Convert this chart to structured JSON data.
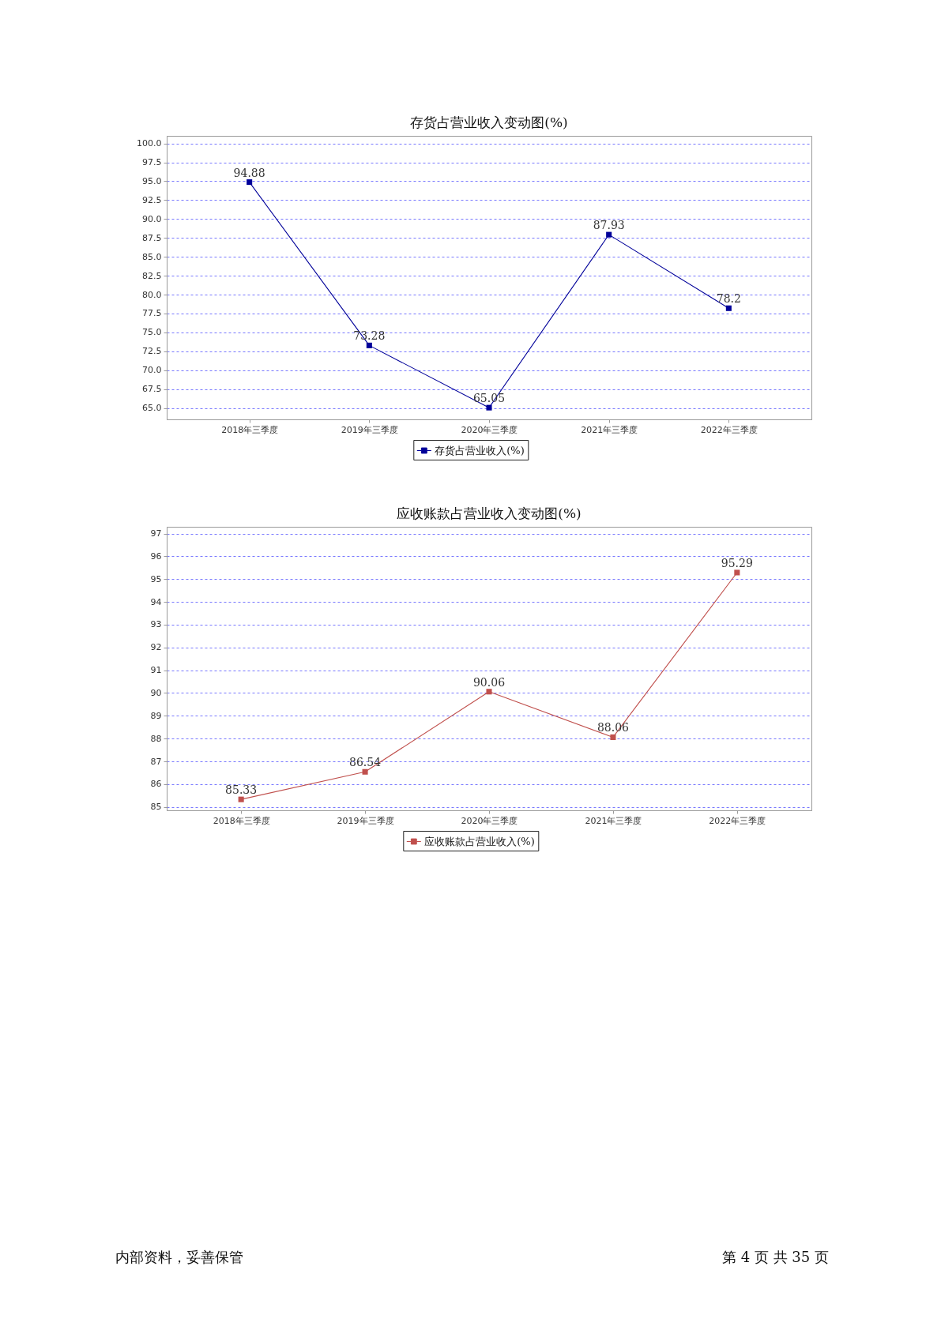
{
  "chart_data": [
    {
      "type": "line",
      "title": "存货占营业收入变动图(%)",
      "categories": [
        "2018年三季度",
        "2019年三季度",
        "2020年三季度",
        "2021年三季度",
        "2022年三季度"
      ],
      "series": [
        {
          "name": "存货占营业收入(%)",
          "color": "#000099",
          "values": [
            94.88,
            73.28,
            65.05,
            87.93,
            78.2
          ]
        }
      ],
      "ylim": [
        63.5,
        101.0
      ],
      "yticks": [
        {
          "value": 65,
          "label": "65.0"
        },
        67.5,
        {
          "value": 70,
          "label": "70.0"
        },
        72.5,
        {
          "value": 75,
          "label": "75.0"
        },
        77.5,
        {
          "value": 80,
          "label": "80.0"
        },
        82.5,
        {
          "value": 85,
          "label": "85.0"
        },
        87.5,
        {
          "value": 90,
          "label": "90.0"
        },
        92.5,
        {
          "value": 95,
          "label": "95.0"
        },
        97.5,
        {
          "value": 100,
          "label": "100.0"
        }
      ],
      "grid": "y",
      "legend": "bottom",
      "marker": "square",
      "line_style": "solid",
      "data_labels": true
    },
    {
      "type": "line",
      "title": "应收账款占营业收入变动图(%)",
      "categories": [
        "2018年三季度",
        "2019年三季度",
        "2020年三季度",
        "2021年三季度",
        "2022年三季度"
      ],
      "series": [
        {
          "name": "应收账款占营业收入(%)",
          "color": "#c0504d",
          "values": [
            85.33,
            86.54,
            90.06,
            88.06,
            95.29
          ]
        }
      ],
      "ylim": [
        84.85,
        97.3
      ],
      "yticks": [
        85,
        86,
        87,
        88,
        89,
        90,
        91,
        92,
        93,
        94,
        95,
        96,
        97
      ],
      "grid": "y",
      "legend": "bottom",
      "marker": "square",
      "line_style": "solid",
      "data_labels": true,
      "annotations": [
        "内部资料，妥善保管",
        "第 4 页 共 35 页"
      ]
    }
  ]
}
